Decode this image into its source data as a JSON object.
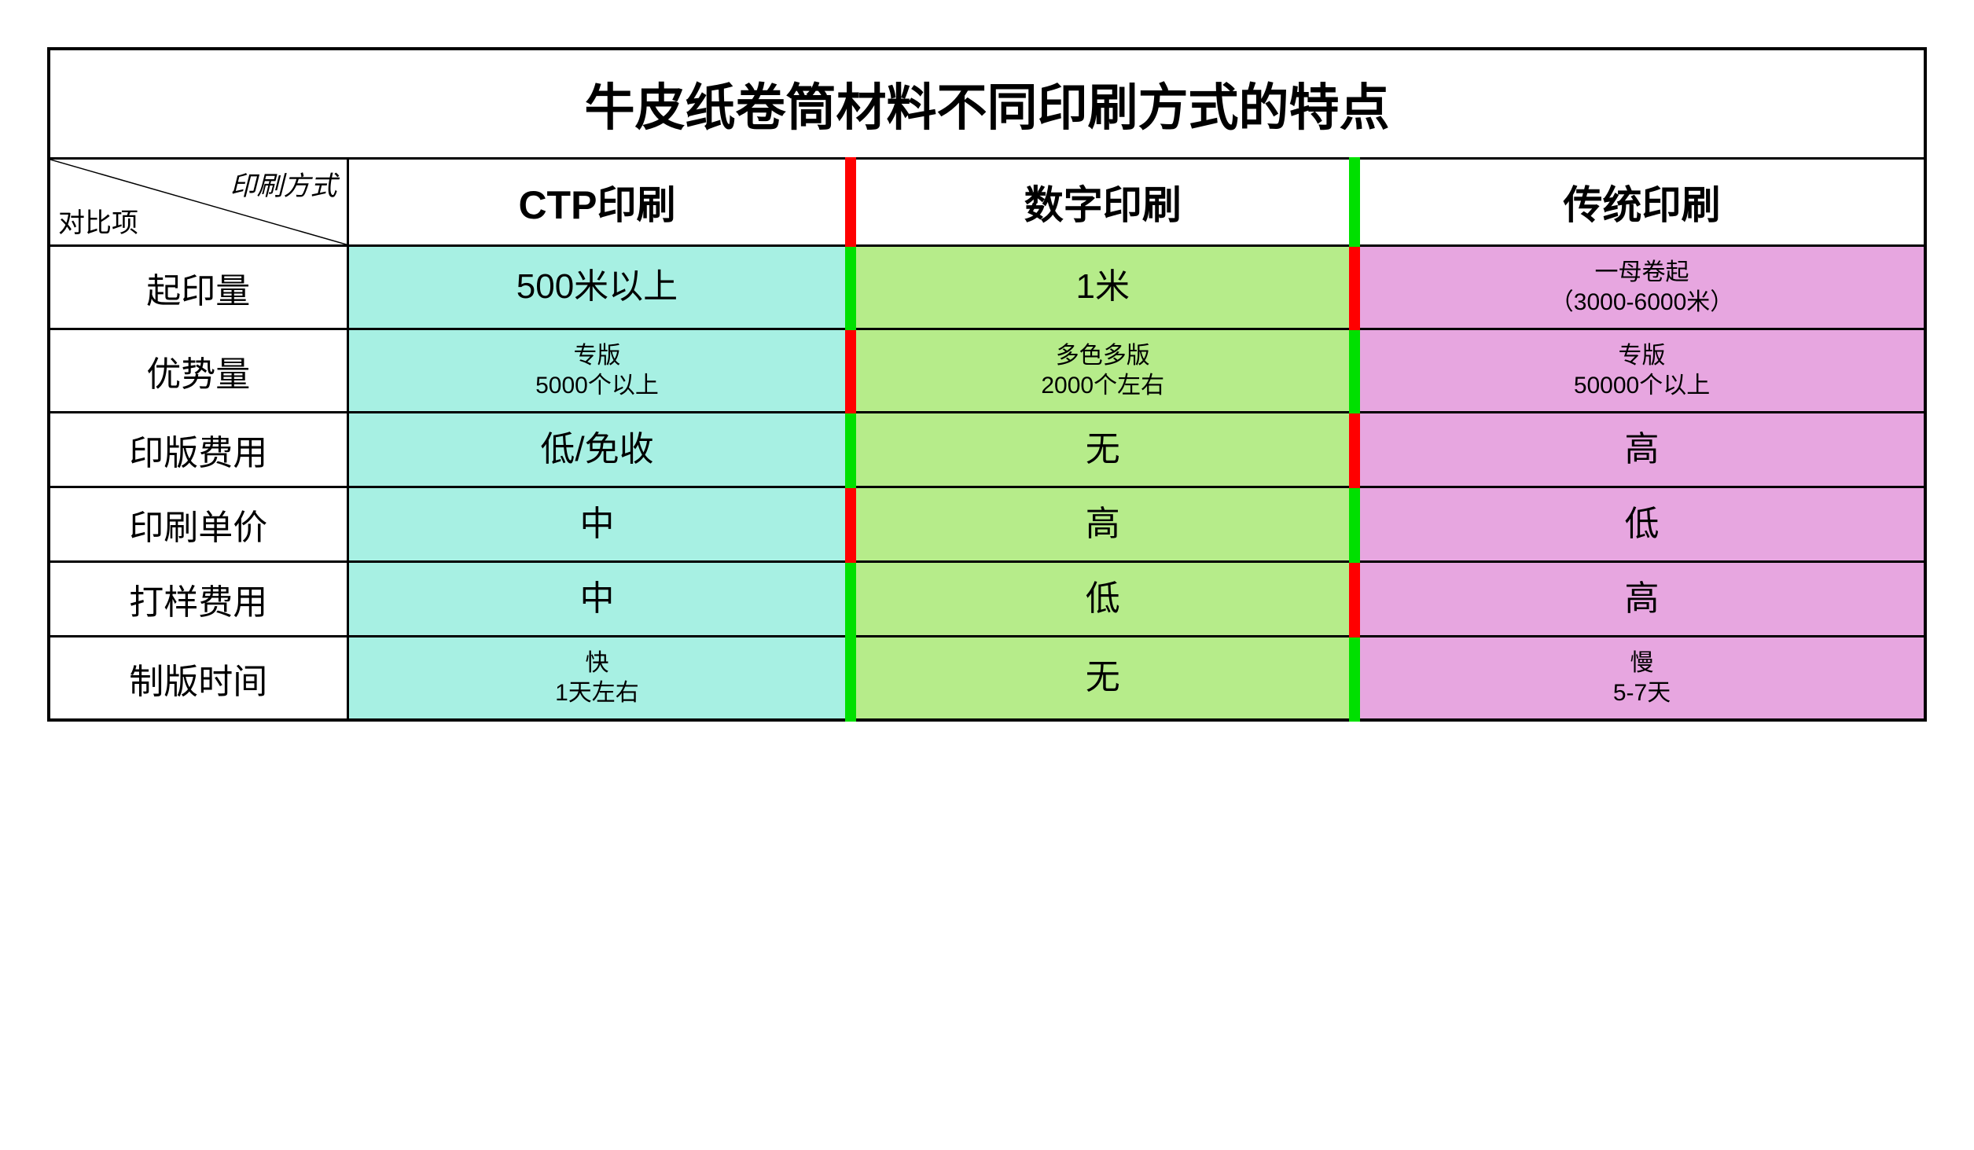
{
  "table": {
    "title": "牛皮纸卷筒材料不同印刷方式的特点",
    "corner": {
      "top": "印刷方式",
      "bottom": "对比项"
    },
    "columns": [
      {
        "label": "CTP印刷",
        "bg": "#a7f0e3",
        "header_edge": "red"
      },
      {
        "label": "数字印刷",
        "bg": "#b6ec8a",
        "header_edge": "green"
      },
      {
        "label": "传统印刷",
        "bg": "#e7a6e0",
        "header_edge": "none"
      }
    ],
    "rows": [
      {
        "label": "起印量",
        "cells": [
          {
            "text": "500米以上",
            "size": "big",
            "edge": "green"
          },
          {
            "text": "1米",
            "size": "big",
            "edge": "red"
          },
          {
            "text": "一母卷起\n（3000-6000米）",
            "size": "small",
            "edge": "none"
          }
        ]
      },
      {
        "label": "优势量",
        "cells": [
          {
            "text": "专版\n5000个以上",
            "size": "small",
            "edge": "red"
          },
          {
            "text": "多色多版\n2000个左右",
            "size": "small",
            "edge": "green"
          },
          {
            "text": "专版\n50000个以上",
            "size": "small",
            "edge": "none"
          }
        ]
      },
      {
        "label": "印版费用",
        "cells": [
          {
            "text": "低/免收",
            "size": "big",
            "edge": "green"
          },
          {
            "text": "无",
            "size": "big",
            "edge": "red"
          },
          {
            "text": "高",
            "size": "big",
            "edge": "none"
          }
        ]
      },
      {
        "label": "印刷单价",
        "cells": [
          {
            "text": "中",
            "size": "big",
            "edge": "red"
          },
          {
            "text": "高",
            "size": "big",
            "edge": "green"
          },
          {
            "text": "低",
            "size": "big",
            "edge": "none"
          }
        ]
      },
      {
        "label": "打样费用",
        "cells": [
          {
            "text": "中",
            "size": "big",
            "edge": "green"
          },
          {
            "text": "低",
            "size": "big",
            "edge": "red"
          },
          {
            "text": "高",
            "size": "big",
            "edge": "none"
          }
        ]
      },
      {
        "label": "制版时间",
        "cells": [
          {
            "text": "快\n1天左右",
            "size": "small",
            "edge": "green"
          },
          {
            "text": "无",
            "size": "big",
            "edge": "green"
          },
          {
            "text": "慢\n5-7天",
            "size": "small",
            "edge": "none"
          }
        ]
      }
    ],
    "style": {
      "title_fontsize": 64,
      "colhead_fontsize": 50,
      "rowhead_fontsize": 44,
      "big_fontsize": 44,
      "small_fontsize": 30,
      "border_color": "#000000",
      "edge_green": "#00e000",
      "edge_red": "#ff0000",
      "background": "#ffffff"
    }
  }
}
